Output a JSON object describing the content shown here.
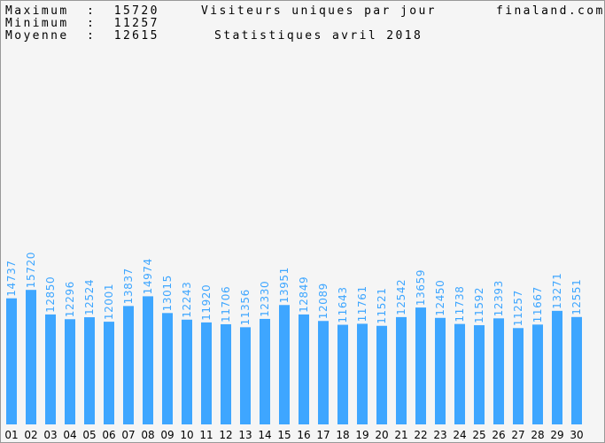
{
  "header": {
    "max_line": "Maximum  :  15720",
    "min_line": "Minimum  :  11257",
    "avg_line": "Moyenne  :  12615",
    "title": "Visiteurs uniques par jour",
    "subtitle": "Statistiques avril 2018",
    "site": "finaland.com"
  },
  "colors": {
    "bar": "#3ea6ff",
    "value_label": "#3ea6ff",
    "tick_label": "#000000",
    "background": "#f5f5f5"
  },
  "chart_data": {
    "type": "bar",
    "title": "Visiteurs uniques par jour",
    "subtitle": "Statistiques avril 2018",
    "categories": [
      "01",
      "02",
      "03",
      "04",
      "05",
      "06",
      "07",
      "08",
      "09",
      "10",
      "11",
      "12",
      "13",
      "14",
      "15",
      "16",
      "17",
      "18",
      "19",
      "20",
      "21",
      "22",
      "23",
      "24",
      "25",
      "26",
      "27",
      "28",
      "29",
      "30"
    ],
    "values": [
      14737,
      15720,
      12850,
      12296,
      12524,
      12001,
      13837,
      14974,
      13015,
      12243,
      11920,
      11706,
      11356,
      12330,
      13951,
      12849,
      12089,
      11643,
      11761,
      11521,
      12542,
      13659,
      12450,
      11738,
      11592,
      12393,
      11257,
      11667,
      13271,
      12551
    ],
    "ylim": [
      0,
      49500
    ],
    "grid": false,
    "legend": "none"
  }
}
